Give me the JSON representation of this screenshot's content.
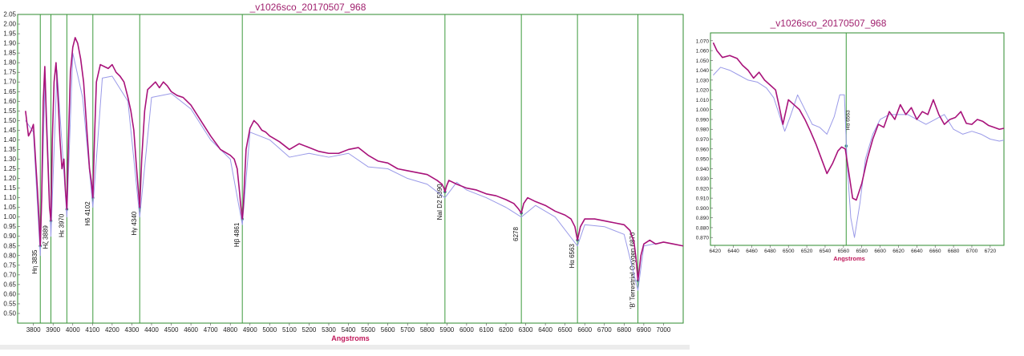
{
  "chart_data": [
    {
      "type": "line",
      "title": "_v1026sco_20170507_968",
      "xlabel": "Angstroms",
      "xlim": [
        3720,
        7100
      ],
      "ylim": [
        0.45,
        2.05
      ],
      "x_ticks": [
        3800,
        3900,
        4000,
        4100,
        4200,
        4300,
        4400,
        4500,
        4600,
        4700,
        4800,
        4900,
        5000,
        5100,
        5200,
        5300,
        5400,
        5500,
        5600,
        5700,
        5800,
        5900,
        6000,
        6100,
        6200,
        6300,
        6400,
        6500,
        6600,
        6700,
        6800,
        6900,
        7000
      ],
      "y_ticks": [
        0.5,
        0.55,
        0.6,
        0.65,
        0.7,
        0.75,
        0.8,
        0.85,
        0.9,
        0.95,
        1.0,
        1.05,
        1.1,
        1.15,
        1.2,
        1.25,
        1.3,
        1.35,
        1.4,
        1.45,
        1.5,
        1.55,
        1.6,
        1.65,
        1.7,
        1.75,
        1.8,
        1.85,
        1.9,
        1.95,
        2.0,
        2.05
      ],
      "grid": false,
      "line_markers": [
        {
          "x": 3835,
          "label": "Hη 3835",
          "y": 0.85
        },
        {
          "x": 3889,
          "label": "Hζ 3889",
          "y": 0.98
        },
        {
          "x": 3970,
          "label": "Hε 3970",
          "y": 1.04
        },
        {
          "x": 4102,
          "label": "Hδ 4102",
          "y": 1.1
        },
        {
          "x": 4340,
          "label": "Hγ 4340",
          "y": 1.05
        },
        {
          "x": 4861,
          "label": "Hβ 4861",
          "y": 0.99
        },
        {
          "x": 5890,
          "label": "NaI D2 5890",
          "y": 1.13
        },
        {
          "x": 6278,
          "label": "6278",
          "y": 1.02
        },
        {
          "x": 6563,
          "label": "Hα 6563",
          "y": 0.88
        },
        {
          "x": 6870,
          "label": "'B' Terrestrial Oxygen 6870",
          "y": 0.67
        }
      ],
      "series": [
        {
          "color": "#a8127a",
          "x": [
            3760,
            3775,
            3790,
            3800,
            3812,
            3820,
            3828,
            3835,
            3842,
            3850,
            3858,
            3866,
            3875,
            3882,
            3889,
            3896,
            3905,
            3915,
            3925,
            3935,
            3945,
            3955,
            3962,
            3970,
            3978,
            3988,
            4000,
            4012,
            4025,
            4040,
            4055,
            4065,
            4075,
            4085,
            4095,
            4102,
            4110,
            4120,
            4140,
            4160,
            4180,
            4200,
            4220,
            4240,
            4260,
            4280,
            4295,
            4310,
            4322,
            4332,
            4340,
            4350,
            4365,
            4380,
            4400,
            4420,
            4440,
            4460,
            4480,
            4500,
            4530,
            4560,
            4600,
            4650,
            4700,
            4750,
            4800,
            4820,
            4835,
            4845,
            4852,
            4857,
            4861,
            4866,
            4872,
            4880,
            4900,
            4920,
            4940,
            4960,
            4980,
            5000,
            5050,
            5100,
            5150,
            5200,
            5250,
            5300,
            5350,
            5400,
            5450,
            5500,
            5550,
            5600,
            5650,
            5700,
            5750,
            5800,
            5850,
            5875,
            5885,
            5890,
            5898,
            5910,
            5950,
            6000,
            6050,
            6100,
            6150,
            6200,
            6240,
            6265,
            6278,
            6290,
            6310,
            6350,
            6400,
            6450,
            6500,
            6530,
            6550,
            6563,
            6578,
            6600,
            6650,
            6700,
            6750,
            6800,
            6830,
            6850,
            6860,
            6866,
            6870,
            6876,
            6885,
            6900,
            6930,
            6960,
            7000,
            7050,
            7100
          ],
          "y": [
            1.55,
            1.42,
            1.45,
            1.48,
            1.28,
            1.15,
            1.0,
            0.85,
            1.1,
            1.6,
            1.78,
            1.5,
            1.25,
            1.05,
            0.98,
            1.4,
            1.7,
            1.8,
            1.62,
            1.4,
            1.25,
            1.3,
            1.15,
            1.04,
            1.4,
            1.75,
            1.88,
            1.93,
            1.9,
            1.82,
            1.7,
            1.55,
            1.4,
            1.25,
            1.18,
            1.1,
            1.4,
            1.7,
            1.79,
            1.78,
            1.77,
            1.79,
            1.75,
            1.73,
            1.7,
            1.62,
            1.55,
            1.45,
            1.28,
            1.15,
            1.05,
            1.3,
            1.55,
            1.66,
            1.68,
            1.7,
            1.67,
            1.7,
            1.68,
            1.65,
            1.63,
            1.62,
            1.58,
            1.5,
            1.42,
            1.35,
            1.32,
            1.3,
            1.25,
            1.15,
            1.07,
            1.02,
            0.99,
            1.05,
            1.18,
            1.35,
            1.46,
            1.5,
            1.48,
            1.45,
            1.44,
            1.42,
            1.39,
            1.35,
            1.38,
            1.36,
            1.34,
            1.33,
            1.33,
            1.35,
            1.36,
            1.32,
            1.29,
            1.28,
            1.25,
            1.24,
            1.23,
            1.22,
            1.19,
            1.17,
            1.15,
            1.13,
            1.16,
            1.19,
            1.17,
            1.15,
            1.14,
            1.12,
            1.11,
            1.09,
            1.07,
            1.04,
            1.02,
            1.07,
            1.1,
            1.08,
            1.06,
            1.03,
            1.01,
            0.99,
            0.95,
            0.88,
            0.95,
            0.99,
            0.99,
            0.98,
            0.97,
            0.96,
            0.93,
            0.87,
            0.79,
            0.72,
            0.67,
            0.72,
            0.8,
            0.86,
            0.88,
            0.86,
            0.87,
            0.86,
            0.85
          ]
        },
        {
          "color": "#9a9ae8",
          "x": [
            3760,
            3800,
            3835,
            3860,
            3889,
            3920,
            3970,
            4000,
            4050,
            4102,
            4150,
            4200,
            4280,
            4340,
            4400,
            4500,
            4600,
            4700,
            4800,
            4861,
            4900,
            5000,
            5100,
            5200,
            5300,
            5400,
            5500,
            5600,
            5700,
            5800,
            5890,
            5950,
            6000,
            6100,
            6200,
            6278,
            6350,
            6450,
            6563,
            6600,
            6700,
            6800,
            6870,
            6900,
            7000,
            7100
          ],
          "y": [
            1.5,
            1.44,
            0.8,
            1.74,
            0.9,
            1.76,
            1.0,
            1.85,
            1.62,
            1.05,
            1.72,
            1.73,
            1.6,
            1.0,
            1.62,
            1.64,
            1.56,
            1.4,
            1.3,
            0.96,
            1.44,
            1.4,
            1.31,
            1.33,
            1.31,
            1.33,
            1.26,
            1.25,
            1.2,
            1.17,
            1.1,
            1.18,
            1.14,
            1.1,
            1.05,
            1.0,
            1.06,
            1.0,
            0.85,
            0.96,
            0.95,
            0.91,
            0.62,
            0.85,
            0.87,
            0.85
          ]
        }
      ]
    },
    {
      "type": "line",
      "title": "_v1026sco_20170507_968",
      "xlabel": "Angstroms",
      "xlim": [
        6415,
        6735
      ],
      "ylim": [
        0.862,
        1.078
      ],
      "x_ticks": [
        6420,
        6440,
        6460,
        6480,
        6500,
        6520,
        6540,
        6560,
        6580,
        6600,
        6620,
        6640,
        6660,
        6680,
        6700,
        6720
      ],
      "y_ticks": [
        0.87,
        0.88,
        0.89,
        0.9,
        0.91,
        0.92,
        0.93,
        0.94,
        0.95,
        0.96,
        0.97,
        0.98,
        0.99,
        1.0,
        1.01,
        1.02,
        1.03,
        1.04,
        1.05,
        1.06,
        1.07
      ],
      "grid": false,
      "line_markers": [
        {
          "x": 6563,
          "label": "Hα 6563",
          "y": 0.963
        }
      ],
      "series": [
        {
          "color": "#a8127a",
          "x": [
            6418,
            6422,
            6428,
            6436,
            6444,
            6450,
            6456,
            6462,
            6468,
            6474,
            6480,
            6486,
            6490,
            6494,
            6500,
            6506,
            6512,
            6518,
            6524,
            6530,
            6536,
            6542,
            6548,
            6554,
            6558,
            6562,
            6566,
            6570,
            6574,
            6580,
            6586,
            6592,
            6598,
            6604,
            6610,
            6616,
            6622,
            6628,
            6634,
            6640,
            6646,
            6652,
            6658,
            6664,
            6670,
            6676,
            6682,
            6688,
            6694,
            6700,
            6706,
            6712,
            6718,
            6724,
            6730,
            6735
          ],
          "y": [
            1.068,
            1.06,
            1.053,
            1.055,
            1.052,
            1.045,
            1.04,
            1.032,
            1.038,
            1.03,
            1.025,
            1.02,
            1.003,
            0.985,
            1.01,
            1.005,
            1.0,
            0.99,
            0.978,
            0.965,
            0.95,
            0.935,
            0.945,
            0.958,
            0.962,
            0.96,
            0.935,
            0.91,
            0.908,
            0.925,
            0.95,
            0.97,
            0.985,
            0.982,
            0.998,
            0.99,
            1.005,
            0.995,
            1.002,
            0.99,
            0.998,
            0.995,
            1.01,
            0.995,
            0.985,
            0.99,
            0.992,
            0.998,
            0.986,
            0.985,
            0.99,
            0.988,
            0.984,
            0.982,
            0.98,
            0.981
          ]
        },
        {
          "color": "#9a9ae8",
          "x": [
            6418,
            6426,
            6436,
            6446,
            6456,
            6466,
            6476,
            6484,
            6490,
            6496,
            6502,
            6510,
            6518,
            6526,
            6534,
            6542,
            6550,
            6556,
            6561,
            6564,
            6568,
            6572,
            6578,
            6584,
            6592,
            6600,
            6610,
            6620,
            6630,
            6640,
            6650,
            6660,
            6670,
            6680,
            6690,
            6700,
            6710,
            6720,
            6730,
            6735
          ],
          "y": [
            1.035,
            1.043,
            1.04,
            1.035,
            1.03,
            1.028,
            1.022,
            1.012,
            0.995,
            0.978,
            0.993,
            1.015,
            1.0,
            0.985,
            0.982,
            0.975,
            0.993,
            1.015,
            1.015,
            0.945,
            0.89,
            0.87,
            0.905,
            0.95,
            0.975,
            0.99,
            0.995,
            0.995,
            0.995,
            0.99,
            0.985,
            0.99,
            0.995,
            0.98,
            0.975,
            0.978,
            0.975,
            0.97,
            0.968,
            0.969
          ]
        }
      ]
    }
  ]
}
